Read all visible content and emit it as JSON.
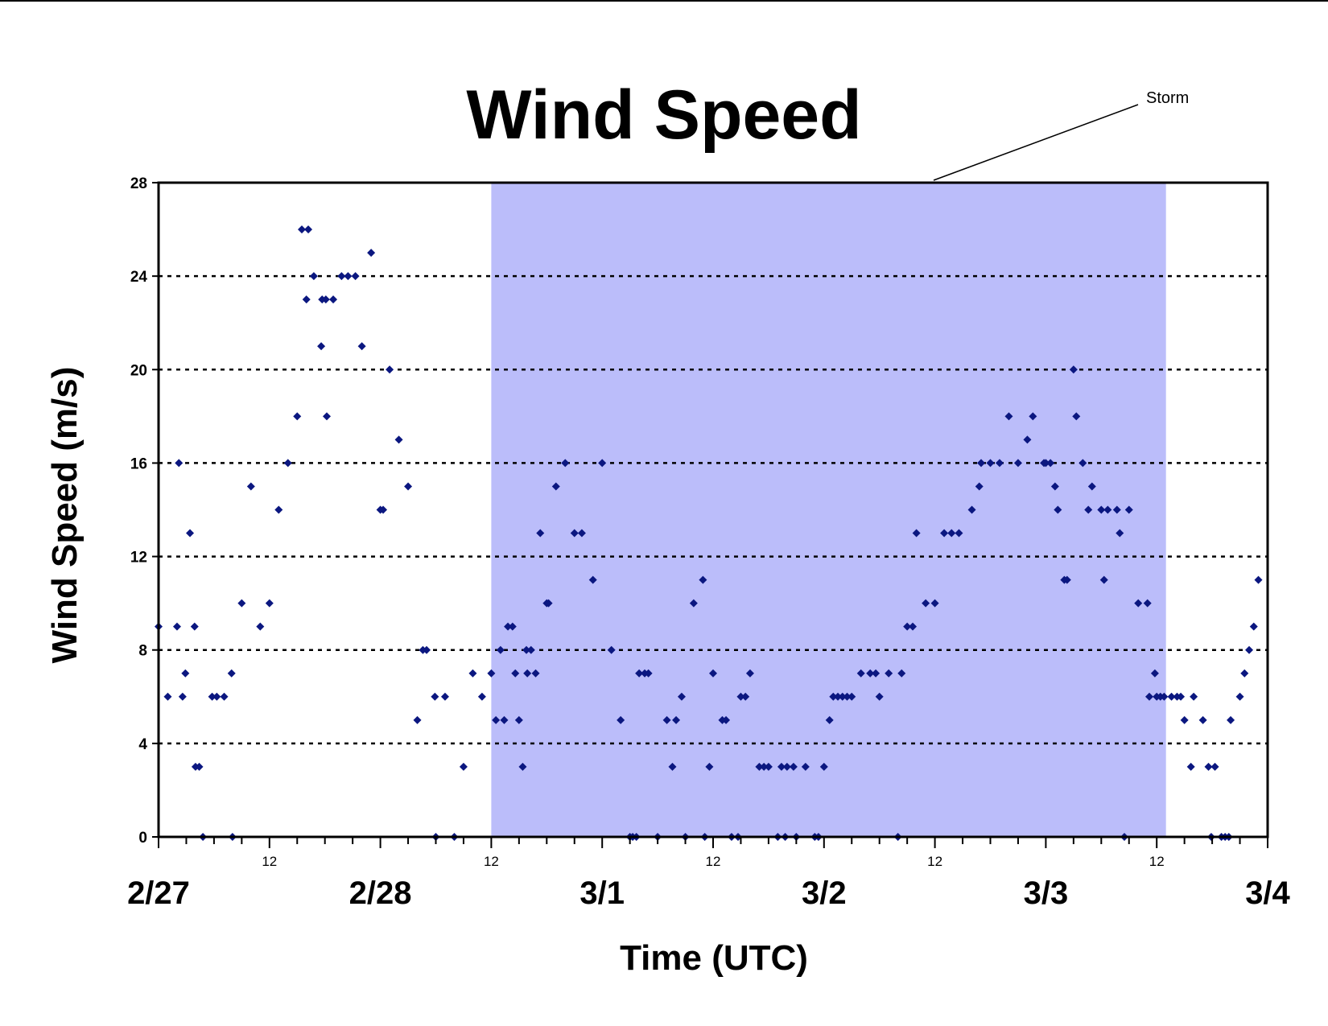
{
  "chart_data": {
    "type": "scatter",
    "title": "Wind Speed",
    "xlabel": "Time (UTC)",
    "ylabel": "Wind Speed (m/s)",
    "x_unit": "hours from 2/27 00 UTC",
    "xlim": [
      0,
      120
    ],
    "ylim": [
      0,
      28
    ],
    "yticks": [
      0,
      4,
      8,
      12,
      16,
      20,
      24,
      28
    ],
    "x_day_ticks": [
      {
        "x": 0,
        "label": "2/27"
      },
      {
        "x": 24,
        "label": "2/28"
      },
      {
        "x": 48,
        "label": "3/1"
      },
      {
        "x": 72,
        "label": "3/2"
      },
      {
        "x": 96,
        "label": "3/3"
      },
      {
        "x": 120,
        "label": "3/4"
      }
    ],
    "x_hour_ticks": [
      {
        "x": 12,
        "label": "12"
      },
      {
        "x": 36,
        "label": "12"
      },
      {
        "x": 60,
        "label": "12"
      },
      {
        "x": 84,
        "label": "12"
      },
      {
        "x": 108,
        "label": "12"
      }
    ],
    "grid": "horizontal dotted",
    "shaded_region": {
      "label": "Storm",
      "x_start": 36,
      "x_end": 109,
      "color": "#bbbdfa"
    },
    "marker_color": "#0b1780",
    "points": [
      [
        0,
        9
      ],
      [
        1,
        6
      ],
      [
        2,
        9
      ],
      [
        2.2,
        16
      ],
      [
        2.6,
        6
      ],
      [
        2.9,
        7
      ],
      [
        3.4,
        13
      ],
      [
        3.9,
        9
      ],
      [
        4,
        3
      ],
      [
        4.4,
        3
      ],
      [
        4.8,
        0
      ],
      [
        5.8,
        6
      ],
      [
        6.3,
        6
      ],
      [
        7.1,
        6
      ],
      [
        7.9,
        7
      ],
      [
        8,
        0
      ],
      [
        9,
        10
      ],
      [
        10,
        15
      ],
      [
        11,
        9
      ],
      [
        12,
        10
      ],
      [
        13,
        14
      ],
      [
        14,
        16
      ],
      [
        15,
        18
      ],
      [
        15.5,
        26
      ],
      [
        16,
        23
      ],
      [
        16.2,
        26
      ],
      [
        16.8,
        24
      ],
      [
        17.6,
        21
      ],
      [
        17.7,
        23
      ],
      [
        18.1,
        23
      ],
      [
        18.2,
        18
      ],
      [
        18.9,
        23
      ],
      [
        19.8,
        24
      ],
      [
        20.5,
        24
      ],
      [
        21.3,
        24
      ],
      [
        22,
        21
      ],
      [
        23,
        25
      ],
      [
        24,
        14
      ],
      [
        24.3,
        14
      ],
      [
        25,
        20
      ],
      [
        26,
        17
      ],
      [
        27,
        15
      ],
      [
        28,
        5
      ],
      [
        28.6,
        8
      ],
      [
        29,
        8
      ],
      [
        29.9,
        6
      ],
      [
        30,
        0
      ],
      [
        31,
        6
      ],
      [
        32,
        0
      ],
      [
        33,
        3
      ],
      [
        34,
        7
      ],
      [
        35,
        6
      ],
      [
        36,
        7
      ],
      [
        36.5,
        5
      ],
      [
        37,
        8
      ],
      [
        37.4,
        5
      ],
      [
        37.8,
        9
      ],
      [
        38.3,
        9
      ],
      [
        38.6,
        7
      ],
      [
        39,
        5
      ],
      [
        39.4,
        3
      ],
      [
        39.8,
        8
      ],
      [
        39.9,
        7
      ],
      [
        40.3,
        8
      ],
      [
        40.8,
        7
      ],
      [
        41.3,
        13
      ],
      [
        42,
        10
      ],
      [
        42.2,
        10
      ],
      [
        43,
        15
      ],
      [
        44,
        16
      ],
      [
        45,
        13
      ],
      [
        45.8,
        13
      ],
      [
        47,
        11
      ],
      [
        48,
        16
      ],
      [
        49,
        8
      ],
      [
        50,
        5
      ],
      [
        51,
        0
      ],
      [
        51.3,
        0
      ],
      [
        51.7,
        0
      ],
      [
        52,
        7
      ],
      [
        52.6,
        7
      ],
      [
        53,
        7
      ],
      [
        54,
        0
      ],
      [
        55,
        5
      ],
      [
        55.6,
        3
      ],
      [
        56,
        5
      ],
      [
        56.6,
        6
      ],
      [
        57,
        0
      ],
      [
        57.9,
        10
      ],
      [
        58.9,
        11
      ],
      [
        59.1,
        0
      ],
      [
        59.6,
        3
      ],
      [
        60,
        7
      ],
      [
        61,
        5
      ],
      [
        61.4,
        5
      ],
      [
        62,
        0
      ],
      [
        62.7,
        0
      ],
      [
        63,
        6
      ],
      [
        63.5,
        6
      ],
      [
        64,
        7
      ],
      [
        65,
        3
      ],
      [
        65.5,
        3
      ],
      [
        66,
        3
      ],
      [
        67,
        0
      ],
      [
        67.4,
        3
      ],
      [
        67.8,
        0
      ],
      [
        68,
        3
      ],
      [
        68.7,
        3
      ],
      [
        69,
        0
      ],
      [
        70,
        3
      ],
      [
        71,
        0
      ],
      [
        71.4,
        0
      ],
      [
        72,
        3
      ],
      [
        72.6,
        5
      ],
      [
        73,
        6
      ],
      [
        73.5,
        6
      ],
      [
        74,
        6
      ],
      [
        74.5,
        6
      ],
      [
        75,
        6
      ],
      [
        76,
        7
      ],
      [
        77,
        7
      ],
      [
        77.6,
        7
      ],
      [
        78,
        6
      ],
      [
        79,
        7
      ],
      [
        80,
        0
      ],
      [
        80.4,
        7
      ],
      [
        81,
        9
      ],
      [
        81.6,
        9
      ],
      [
        82,
        13
      ],
      [
        83,
        10
      ],
      [
        84,
        10
      ],
      [
        85,
        13
      ],
      [
        85.8,
        13
      ],
      [
        86.6,
        13
      ],
      [
        88,
        14
      ],
      [
        88.8,
        15
      ],
      [
        89,
        16
      ],
      [
        90,
        16
      ],
      [
        91,
        16
      ],
      [
        92,
        18
      ],
      [
        93,
        16
      ],
      [
        94,
        17
      ],
      [
        94.6,
        18
      ],
      [
        95.8,
        16
      ],
      [
        96,
        16
      ],
      [
        96.5,
        16
      ],
      [
        97,
        15
      ],
      [
        97.3,
        14
      ],
      [
        98,
        11
      ],
      [
        98.3,
        11
      ],
      [
        99,
        20
      ],
      [
        99.3,
        18
      ],
      [
        100,
        16
      ],
      [
        100.6,
        14
      ],
      [
        101,
        15
      ],
      [
        102,
        14
      ],
      [
        102.3,
        11
      ],
      [
        102.7,
        14
      ],
      [
        103.7,
        14
      ],
      [
        104,
        13
      ],
      [
        104.5,
        0
      ],
      [
        105,
        14
      ],
      [
        106,
        10
      ],
      [
        107,
        10
      ],
      [
        107.2,
        6
      ],
      [
        107.8,
        7
      ],
      [
        108,
        6
      ],
      [
        108.4,
        6
      ],
      [
        108.8,
        6
      ],
      [
        109.6,
        6
      ],
      [
        110.2,
        6
      ],
      [
        110.6,
        6
      ],
      [
        111,
        5
      ],
      [
        111.7,
        3
      ],
      [
        112,
        6
      ],
      [
        113,
        5
      ],
      [
        113.6,
        3
      ],
      [
        113.9,
        0
      ],
      [
        114.3,
        3
      ],
      [
        115,
        0
      ],
      [
        115.4,
        0
      ],
      [
        115.8,
        0
      ],
      [
        116,
        5
      ],
      [
        117,
        6
      ],
      [
        117.5,
        7
      ],
      [
        118,
        8
      ],
      [
        118.5,
        9
      ],
      [
        119,
        11
      ]
    ],
    "annotation": {
      "text": "Storm",
      "points_to": "shaded_region"
    }
  }
}
